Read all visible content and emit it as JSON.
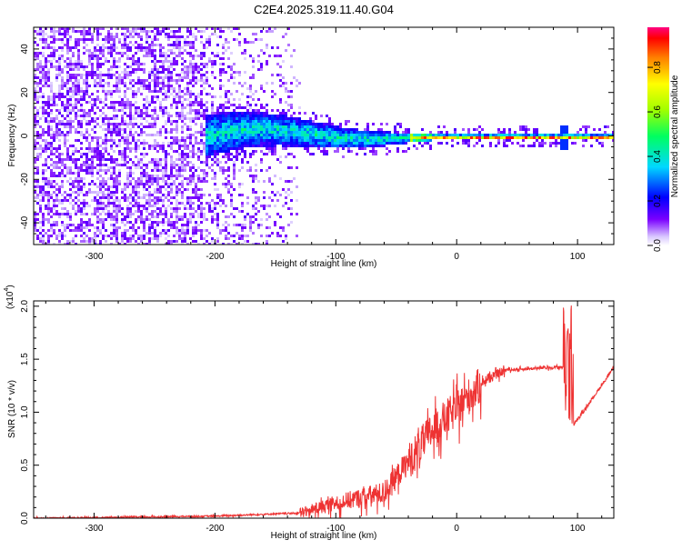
{
  "title": "C2E4.2025.319.11.40.G04",
  "chart_data": [
    {
      "type": "heatmap",
      "name": "spectrogram",
      "xlabel": "Height of straight line (km)",
      "ylabel": "Frequency (Hz)",
      "xlim": [
        -350,
        130
      ],
      "ylim": [
        -50,
        50
      ],
      "xticks": [
        -300,
        -200,
        -100,
        0,
        100
      ],
      "yticks": [
        -40,
        -20,
        0,
        20,
        40
      ],
      "colorbar": {
        "label": "Normalized spectral amplitude",
        "range": [
          0,
          1
        ],
        "ticks": [
          "0.0",
          "0.2",
          "0.4",
          "0.6",
          "0.8"
        ]
      },
      "description_values": {
        "noise_region_x": [
          -350,
          -130
        ],
        "signal_start_x": -205,
        "signal_line_freq_hz": 0
      }
    },
    {
      "type": "line",
      "name": "snr",
      "xlabel": "Height of straight line (km)",
      "ylabel": "SNR (10 * v/v)",
      "multiplier_label": "(x10",
      "multiplier_exp": "4",
      "xlim": [
        -350,
        130
      ],
      "ylim": [
        0,
        2.05
      ],
      "xticks": [
        -300,
        -200,
        -100,
        0,
        100
      ],
      "yticks": [
        "0.0",
        "0.5",
        "1.0",
        "1.5",
        "2.0"
      ],
      "color": "#ee3333",
      "key_points": [
        {
          "x": -350,
          "y": 0.0
        },
        {
          "x": -200,
          "y": 0.02
        },
        {
          "x": -130,
          "y": 0.05
        },
        {
          "x": -100,
          "y": 0.15
        },
        {
          "x": -60,
          "y": 0.25
        },
        {
          "x": -40,
          "y": 0.55
        },
        {
          "x": -20,
          "y": 0.85
        },
        {
          "x": 0,
          "y": 1.05
        },
        {
          "x": 20,
          "y": 1.28
        },
        {
          "x": 40,
          "y": 1.4
        },
        {
          "x": 90,
          "y": 1.43
        },
        {
          "x": 93,
          "y": 2.0
        },
        {
          "x": 95,
          "y": 0.85
        },
        {
          "x": 130,
          "y": 1.42
        }
      ]
    }
  ]
}
